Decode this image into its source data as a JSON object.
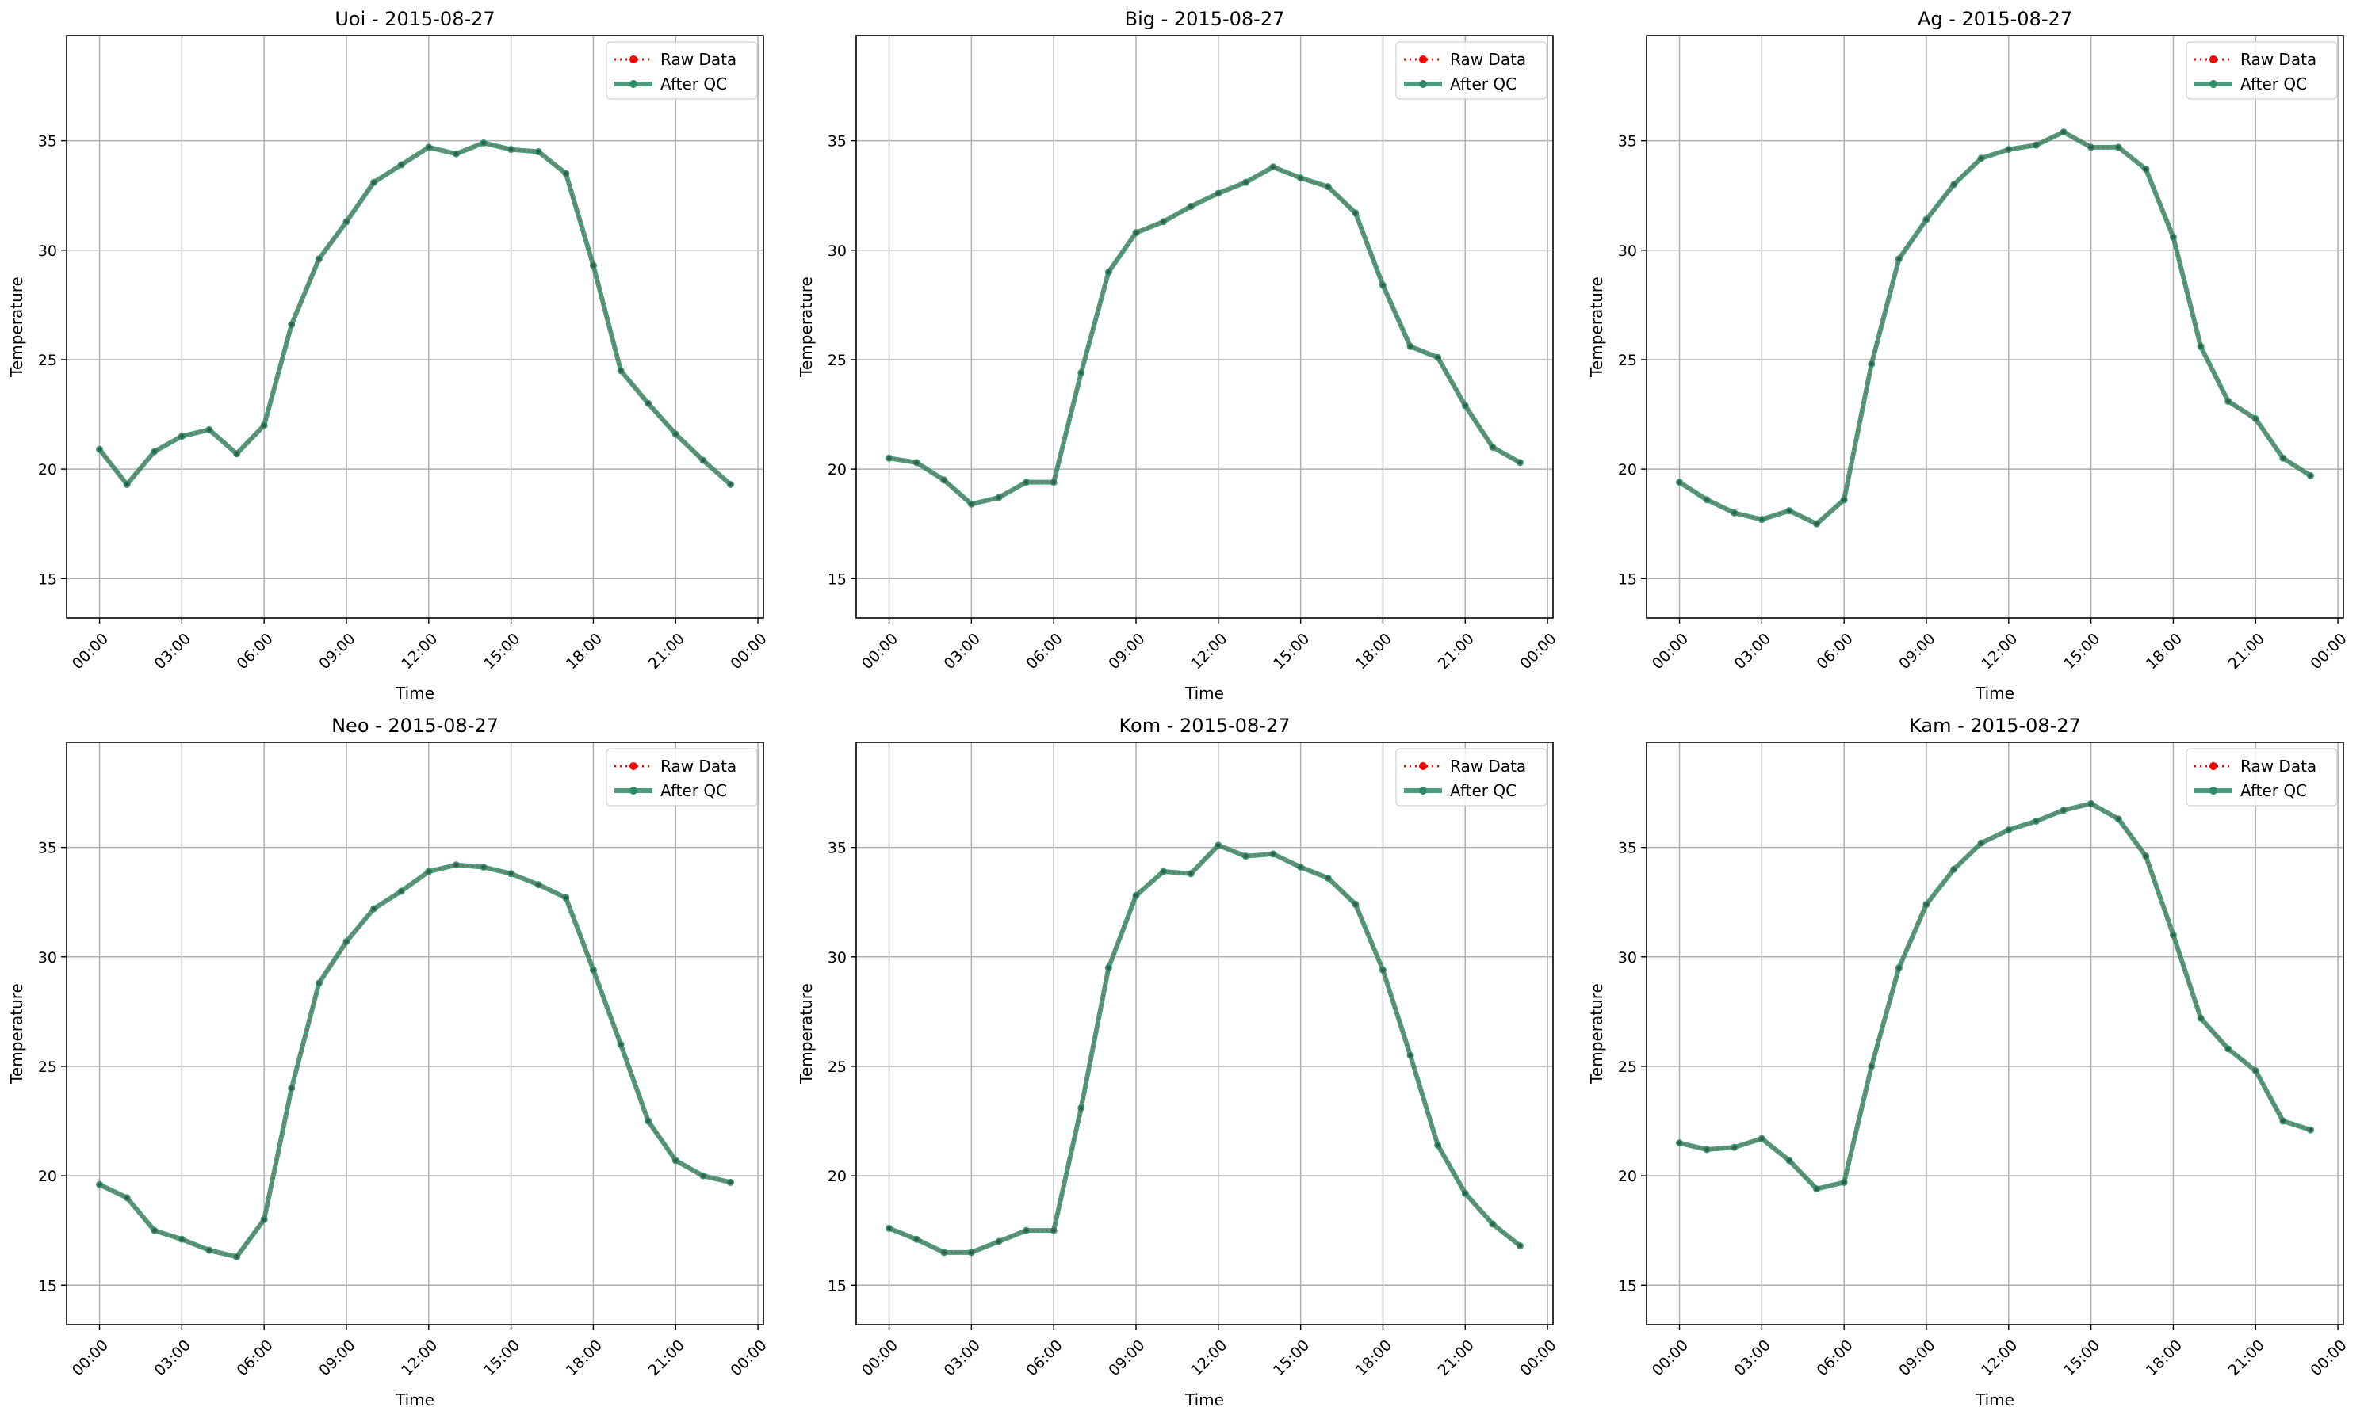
{
  "figure": {
    "x_tick_labels": [
      "00:00",
      "03:00",
      "06:00",
      "09:00",
      "12:00",
      "15:00",
      "18:00",
      "21:00",
      "00:00"
    ],
    "y_ticks": [
      15,
      20,
      25,
      30,
      35
    ],
    "ylim": [
      13.2,
      39.8
    ],
    "xlim_hours": [
      -1.2,
      24.2
    ],
    "colors": {
      "raw": "#ff0000",
      "after_qc": "#2e8b67",
      "grid": "#b0b0b0",
      "axis": "#000000"
    }
  },
  "chart_data": [
    {
      "type": "line",
      "title": "Uoi - 2015-08-27",
      "xlabel": "Time",
      "ylabel": "Temperature",
      "x": [
        "00:00",
        "01:00",
        "02:00",
        "03:00",
        "04:00",
        "05:00",
        "06:00",
        "07:00",
        "08:00",
        "09:00",
        "10:00",
        "11:00",
        "12:00",
        "13:00",
        "14:00",
        "15:00",
        "16:00",
        "17:00",
        "18:00",
        "19:00",
        "20:00",
        "21:00",
        "22:00",
        "23:00"
      ],
      "series": [
        {
          "name": "Raw Data",
          "values": [
            20.9,
            19.3,
            20.8,
            21.5,
            21.8,
            20.7,
            22.0,
            26.6,
            29.6,
            31.3,
            33.1,
            33.9,
            34.7,
            34.4,
            34.9,
            34.6,
            34.5,
            33.5,
            29.3,
            24.5,
            23.0,
            21.6,
            20.4,
            19.3
          ]
        },
        {
          "name": "After QC",
          "values": [
            20.9,
            19.3,
            20.8,
            21.5,
            21.8,
            20.7,
            22.0,
            26.6,
            29.6,
            31.3,
            33.1,
            33.9,
            34.7,
            34.4,
            34.9,
            34.6,
            34.5,
            33.5,
            29.3,
            24.5,
            23.0,
            21.6,
            20.4,
            19.3
          ]
        }
      ],
      "legend": "top-right",
      "grid": true
    },
    {
      "type": "line",
      "title": "Big - 2015-08-27",
      "xlabel": "Time",
      "ylabel": "Temperature",
      "x": [
        "00:00",
        "01:00",
        "02:00",
        "03:00",
        "04:00",
        "05:00",
        "06:00",
        "07:00",
        "08:00",
        "09:00",
        "10:00",
        "11:00",
        "12:00",
        "13:00",
        "14:00",
        "15:00",
        "16:00",
        "17:00",
        "18:00",
        "19:00",
        "20:00",
        "21:00",
        "22:00",
        "23:00"
      ],
      "series": [
        {
          "name": "Raw Data",
          "values": [
            20.5,
            20.3,
            19.5,
            18.4,
            18.7,
            19.4,
            19.4,
            24.4,
            29.0,
            30.8,
            31.3,
            32.0,
            32.6,
            33.1,
            33.8,
            33.3,
            32.9,
            31.7,
            28.4,
            25.6,
            25.1,
            22.9,
            21.0,
            20.3
          ]
        },
        {
          "name": "After QC",
          "values": [
            20.5,
            20.3,
            19.5,
            18.4,
            18.7,
            19.4,
            19.4,
            24.4,
            29.0,
            30.8,
            31.3,
            32.0,
            32.6,
            33.1,
            33.8,
            33.3,
            32.9,
            31.7,
            28.4,
            25.6,
            25.1,
            22.9,
            21.0,
            20.3
          ]
        }
      ],
      "legend": "top-right",
      "grid": true
    },
    {
      "type": "line",
      "title": "Ag - 2015-08-27",
      "xlabel": "Time",
      "ylabel": "Temperature",
      "x": [
        "00:00",
        "01:00",
        "02:00",
        "03:00",
        "04:00",
        "05:00",
        "06:00",
        "07:00",
        "08:00",
        "09:00",
        "10:00",
        "11:00",
        "12:00",
        "13:00",
        "14:00",
        "15:00",
        "16:00",
        "17:00",
        "18:00",
        "19:00",
        "20:00",
        "21:00",
        "22:00",
        "23:00"
      ],
      "series": [
        {
          "name": "Raw Data",
          "values": [
            19.4,
            18.6,
            18.0,
            17.7,
            18.1,
            17.5,
            18.6,
            24.8,
            29.6,
            31.4,
            33.0,
            34.2,
            34.6,
            34.8,
            35.4,
            34.7,
            34.7,
            33.7,
            30.6,
            25.6,
            23.1,
            22.3,
            20.5,
            19.7
          ]
        },
        {
          "name": "After QC",
          "values": [
            19.4,
            18.6,
            18.0,
            17.7,
            18.1,
            17.5,
            18.6,
            24.8,
            29.6,
            31.4,
            33.0,
            34.2,
            34.6,
            34.8,
            35.4,
            34.7,
            34.7,
            33.7,
            30.6,
            25.6,
            23.1,
            22.3,
            20.5,
            19.7
          ]
        }
      ],
      "legend": "top-right",
      "grid": true
    },
    {
      "type": "line",
      "title": "Neo - 2015-08-27",
      "xlabel": "Time",
      "ylabel": "Temperature",
      "x": [
        "00:00",
        "01:00",
        "02:00",
        "03:00",
        "04:00",
        "05:00",
        "06:00",
        "07:00",
        "08:00",
        "09:00",
        "10:00",
        "11:00",
        "12:00",
        "13:00",
        "14:00",
        "15:00",
        "16:00",
        "17:00",
        "18:00",
        "19:00",
        "20:00",
        "21:00",
        "22:00",
        "23:00"
      ],
      "series": [
        {
          "name": "Raw Data",
          "values": [
            19.6,
            19.0,
            17.5,
            17.1,
            16.6,
            16.3,
            18.0,
            24.0,
            28.8,
            30.7,
            32.2,
            33.0,
            33.9,
            34.2,
            34.1,
            33.8,
            33.3,
            32.7,
            29.4,
            26.0,
            22.5,
            20.7,
            20.0,
            19.7
          ]
        },
        {
          "name": "After QC",
          "values": [
            19.6,
            19.0,
            17.5,
            17.1,
            16.6,
            16.3,
            18.0,
            24.0,
            28.8,
            30.7,
            32.2,
            33.0,
            33.9,
            34.2,
            34.1,
            33.8,
            33.3,
            32.7,
            29.4,
            26.0,
            22.5,
            20.7,
            20.0,
            19.7
          ]
        }
      ],
      "legend": "top-right",
      "grid": true
    },
    {
      "type": "line",
      "title": "Kom - 2015-08-27",
      "xlabel": "Time",
      "ylabel": "Temperature",
      "x": [
        "00:00",
        "01:00",
        "02:00",
        "03:00",
        "04:00",
        "05:00",
        "06:00",
        "07:00",
        "08:00",
        "09:00",
        "10:00",
        "11:00",
        "12:00",
        "13:00",
        "14:00",
        "15:00",
        "16:00",
        "17:00",
        "18:00",
        "19:00",
        "20:00",
        "21:00",
        "22:00",
        "23:00"
      ],
      "series": [
        {
          "name": "Raw Data",
          "values": [
            17.6,
            17.1,
            16.5,
            16.5,
            17.0,
            17.5,
            17.5,
            23.1,
            29.5,
            32.8,
            33.9,
            33.8,
            35.1,
            34.6,
            34.7,
            34.1,
            33.6,
            32.4,
            29.4,
            25.5,
            21.4,
            19.2,
            17.8,
            16.8
          ]
        },
        {
          "name": "After QC",
          "values": [
            17.6,
            17.1,
            16.5,
            16.5,
            17.0,
            17.5,
            17.5,
            23.1,
            29.5,
            32.8,
            33.9,
            33.8,
            35.1,
            34.6,
            34.7,
            34.1,
            33.6,
            32.4,
            29.4,
            25.5,
            21.4,
            19.2,
            17.8,
            16.8
          ]
        }
      ],
      "legend": "top-right",
      "grid": true
    },
    {
      "type": "line",
      "title": "Kam - 2015-08-27",
      "xlabel": "Time",
      "ylabel": "Temperature",
      "x": [
        "00:00",
        "01:00",
        "02:00",
        "03:00",
        "04:00",
        "05:00",
        "06:00",
        "07:00",
        "08:00",
        "09:00",
        "10:00",
        "11:00",
        "12:00",
        "13:00",
        "14:00",
        "15:00",
        "16:00",
        "17:00",
        "18:00",
        "19:00",
        "20:00",
        "21:00",
        "22:00",
        "23:00"
      ],
      "series": [
        {
          "name": "Raw Data",
          "values": [
            21.5,
            21.2,
            21.3,
            21.7,
            20.7,
            19.4,
            19.7,
            25.0,
            29.5,
            32.4,
            34.0,
            35.2,
            35.8,
            36.2,
            36.7,
            37.0,
            36.3,
            34.6,
            31.0,
            27.2,
            25.8,
            24.8,
            22.5,
            22.1
          ]
        },
        {
          "name": "After QC",
          "values": [
            21.5,
            21.2,
            21.3,
            21.7,
            20.7,
            19.4,
            19.7,
            25.0,
            29.5,
            32.4,
            34.0,
            35.2,
            35.8,
            36.2,
            36.7,
            37.0,
            36.3,
            34.6,
            31.0,
            27.2,
            25.8,
            24.8,
            22.5,
            22.1
          ]
        }
      ],
      "legend": "top-right",
      "grid": true
    }
  ]
}
